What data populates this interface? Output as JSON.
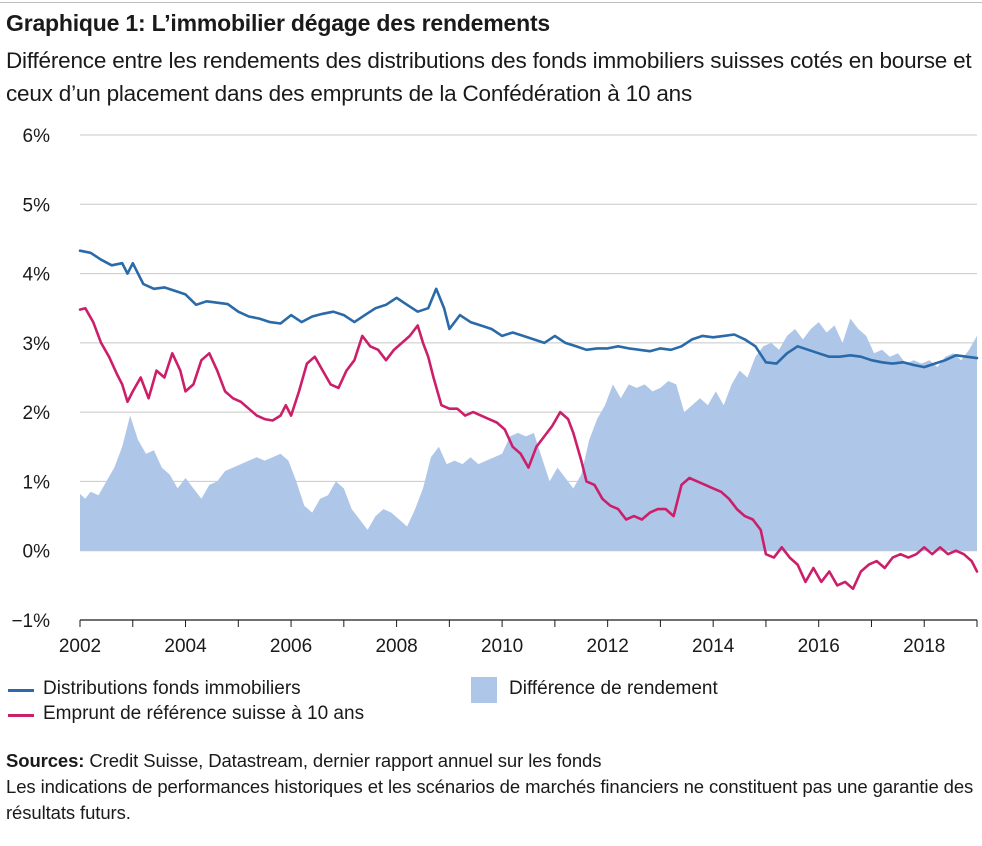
{
  "title": "Graphique 1: L’immobilier dégage des rendements",
  "subtitle": "Différence entre les rendements des distributions des fonds immobiliers suisses cotés en bourse et ceux d’un placement dans des emprunts de la Confédération à 10 ans",
  "sources_label": "Sources:",
  "sources_text": " Credit Suisse, Datastream, dernier rapport annuel sur les fonds",
  "disclaimer": "Les indications de performances historiques et les scénarios de marchés financiers ne constituent pas une garantie des résultats futurs.",
  "colors": {
    "fund": "#2a6aa8",
    "bond": "#cc1f6a",
    "diff": "#aec6e8",
    "grid": "#c8c8c8",
    "axis": "#1a1a1a"
  },
  "chart_data": {
    "type": "line",
    "x_range": [
      2002,
      2019
    ],
    "ylim": [
      -1,
      6
    ],
    "y_ticks": [
      -1,
      0,
      1,
      2,
      3,
      4,
      5,
      6
    ],
    "y_tick_labels": [
      "−1%",
      "0%",
      "1%",
      "2%",
      "3%",
      "4%",
      "5%",
      "6%"
    ],
    "x_ticks": [
      2002,
      2004,
      2006,
      2008,
      2010,
      2012,
      2014,
      2016,
      2018
    ],
    "x_tick_labels": [
      "2002",
      "2004",
      "2006",
      "2008",
      "2010",
      "2012",
      "2014",
      "2016",
      "2018"
    ],
    "grid": "horizontal",
    "legend_position": "bottom",
    "series": [
      {
        "name": "Distributions fonds immobiliers",
        "kind": "line",
        "x": [
          2002.0,
          2002.2,
          2002.4,
          2002.6,
          2002.8,
          2002.9,
          2003.0,
          2003.2,
          2003.4,
          2003.6,
          2003.8,
          2004.0,
          2004.2,
          2004.4,
          2004.6,
          2004.8,
          2005.0,
          2005.2,
          2005.4,
          2005.6,
          2005.8,
          2006.0,
          2006.2,
          2006.4,
          2006.6,
          2006.8,
          2007.0,
          2007.2,
          2007.4,
          2007.6,
          2007.8,
          2008.0,
          2008.2,
          2008.4,
          2008.6,
          2008.75,
          2008.9,
          2009.0,
          2009.2,
          2009.4,
          2009.6,
          2009.8,
          2010.0,
          2010.2,
          2010.4,
          2010.6,
          2010.8,
          2011.0,
          2011.2,
          2011.4,
          2011.6,
          2011.8,
          2012.0,
          2012.2,
          2012.4,
          2012.6,
          2012.8,
          2013.0,
          2013.2,
          2013.4,
          2013.6,
          2013.8,
          2014.0,
          2014.2,
          2014.4,
          2014.6,
          2014.8,
          2015.0,
          2015.2,
          2015.4,
          2015.6,
          2015.8,
          2016.0,
          2016.2,
          2016.4,
          2016.6,
          2016.8,
          2017.0,
          2017.2,
          2017.4,
          2017.6,
          2017.8,
          2018.0,
          2018.2,
          2018.4,
          2018.6,
          2018.8,
          2019.0
        ],
        "y": [
          4.33,
          4.3,
          4.2,
          4.12,
          4.15,
          4.0,
          4.15,
          3.85,
          3.78,
          3.8,
          3.75,
          3.7,
          3.55,
          3.6,
          3.58,
          3.56,
          3.45,
          3.38,
          3.35,
          3.3,
          3.28,
          3.4,
          3.3,
          3.38,
          3.42,
          3.45,
          3.4,
          3.3,
          3.4,
          3.5,
          3.55,
          3.65,
          3.55,
          3.45,
          3.5,
          3.78,
          3.5,
          3.2,
          3.4,
          3.3,
          3.25,
          3.2,
          3.1,
          3.15,
          3.1,
          3.05,
          3.0,
          3.1,
          3.0,
          2.95,
          2.9,
          2.92,
          2.92,
          2.95,
          2.92,
          2.9,
          2.88,
          2.92,
          2.9,
          2.95,
          3.05,
          3.1,
          3.08,
          3.1,
          3.12,
          3.05,
          2.95,
          2.72,
          2.7,
          2.85,
          2.95,
          2.9,
          2.85,
          2.8,
          2.8,
          2.82,
          2.8,
          2.75,
          2.72,
          2.7,
          2.72,
          2.68,
          2.65,
          2.7,
          2.75,
          2.82,
          2.8,
          2.78
        ]
      },
      {
        "name": "Emprunt de référence suisse à 10 ans",
        "kind": "line",
        "x": [
          2002.0,
          2002.1,
          2002.25,
          2002.4,
          2002.55,
          2002.7,
          2002.8,
          2002.9,
          2003.0,
          2003.15,
          2003.3,
          2003.45,
          2003.6,
          2003.75,
          2003.9,
          2004.0,
          2004.15,
          2004.3,
          2004.45,
          2004.6,
          2004.75,
          2004.9,
          2005.05,
          2005.2,
          2005.35,
          2005.5,
          2005.65,
          2005.8,
          2005.9,
          2006.0,
          2006.15,
          2006.3,
          2006.45,
          2006.6,
          2006.75,
          2006.9,
          2007.05,
          2007.2,
          2007.35,
          2007.5,
          2007.65,
          2007.8,
          2007.95,
          2008.1,
          2008.25,
          2008.4,
          2008.5,
          2008.6,
          2008.7,
          2008.85,
          2009.0,
          2009.15,
          2009.3,
          2009.45,
          2009.6,
          2009.75,
          2009.9,
          2010.05,
          2010.2,
          2010.35,
          2010.5,
          2010.65,
          2010.8,
          2010.95,
          2011.1,
          2011.25,
          2011.35,
          2011.5,
          2011.6,
          2011.75,
          2011.9,
          2012.05,
          2012.2,
          2012.35,
          2012.5,
          2012.65,
          2012.8,
          2012.95,
          2013.1,
          2013.25,
          2013.4,
          2013.55,
          2013.7,
          2013.85,
          2014.0,
          2014.15,
          2014.3,
          2014.45,
          2014.6,
          2014.75,
          2014.9,
          2015.0,
          2015.15,
          2015.3,
          2015.45,
          2015.6,
          2015.75,
          2015.9,
          2016.05,
          2016.2,
          2016.35,
          2016.5,
          2016.65,
          2016.8,
          2016.95,
          2017.1,
          2017.25,
          2017.4,
          2017.55,
          2017.7,
          2017.85,
          2018.0,
          2018.15,
          2018.3,
          2018.45,
          2018.6,
          2018.75,
          2018.9,
          2019.0
        ],
        "y": [
          3.48,
          3.5,
          3.3,
          3.0,
          2.8,
          2.55,
          2.4,
          2.15,
          2.3,
          2.5,
          2.2,
          2.6,
          2.5,
          2.85,
          2.6,
          2.3,
          2.4,
          2.75,
          2.85,
          2.6,
          2.3,
          2.2,
          2.15,
          2.05,
          1.95,
          1.9,
          1.88,
          1.95,
          2.1,
          1.95,
          2.3,
          2.7,
          2.8,
          2.6,
          2.4,
          2.35,
          2.6,
          2.75,
          3.1,
          2.95,
          2.9,
          2.75,
          2.9,
          3.0,
          3.1,
          3.25,
          3.0,
          2.8,
          2.5,
          2.1,
          2.05,
          2.05,
          1.95,
          2.0,
          1.95,
          1.9,
          1.85,
          1.75,
          1.5,
          1.4,
          1.2,
          1.5,
          1.65,
          1.8,
          2.0,
          1.9,
          1.7,
          1.3,
          1.0,
          0.95,
          0.75,
          0.65,
          0.6,
          0.45,
          0.5,
          0.45,
          0.55,
          0.6,
          0.6,
          0.5,
          0.95,
          1.05,
          1.0,
          0.95,
          0.9,
          0.85,
          0.75,
          0.6,
          0.5,
          0.45,
          0.3,
          -0.05,
          -0.1,
          0.05,
          -0.1,
          -0.2,
          -0.45,
          -0.25,
          -0.45,
          -0.3,
          -0.5,
          -0.45,
          -0.55,
          -0.3,
          -0.2,
          -0.15,
          -0.25,
          -0.1,
          -0.05,
          -0.1,
          -0.05,
          0.05,
          -0.05,
          0.05,
          -0.05,
          0.0,
          -0.05,
          -0.15,
          -0.3
        ]
      },
      {
        "name": "Différence de rendement",
        "kind": "area",
        "x": [
          2002.0,
          2002.1,
          2002.2,
          2002.35,
          2002.5,
          2002.65,
          2002.8,
          2002.95,
          2003.1,
          2003.25,
          2003.4,
          2003.55,
          2003.7,
          2003.85,
          2004.0,
          2004.15,
          2004.3,
          2004.45,
          2004.6,
          2004.75,
          2004.9,
          2005.05,
          2005.2,
          2005.35,
          2005.5,
          2005.65,
          2005.8,
          2005.95,
          2006.1,
          2006.25,
          2006.4,
          2006.55,
          2006.7,
          2006.85,
          2007.0,
          2007.15,
          2007.3,
          2007.45,
          2007.6,
          2007.75,
          2007.9,
          2008.05,
          2008.2,
          2008.35,
          2008.5,
          2008.65,
          2008.8,
          2008.95,
          2009.1,
          2009.25,
          2009.4,
          2009.55,
          2009.7,
          2009.85,
          2010.0,
          2010.15,
          2010.3,
          2010.45,
          2010.6,
          2010.75,
          2010.9,
          2011.05,
          2011.2,
          2011.35,
          2011.5,
          2011.65,
          2011.8,
          2011.95,
          2012.1,
          2012.25,
          2012.4,
          2012.55,
          2012.7,
          2012.85,
          2013.0,
          2013.15,
          2013.3,
          2013.45,
          2013.6,
          2013.75,
          2013.9,
          2014.05,
          2014.2,
          2014.35,
          2014.5,
          2014.65,
          2014.8,
          2014.95,
          2015.1,
          2015.25,
          2015.4,
          2015.55,
          2015.7,
          2015.85,
          2016.0,
          2016.15,
          2016.3,
          2016.45,
          2016.6,
          2016.75,
          2016.9,
          2017.05,
          2017.2,
          2017.35,
          2017.5,
          2017.65,
          2017.8,
          2017.95,
          2018.1,
          2018.25,
          2018.4,
          2018.55,
          2018.7,
          2018.85,
          2019.0
        ],
        "y": [
          0.82,
          0.75,
          0.85,
          0.8,
          1.0,
          1.2,
          1.5,
          1.95,
          1.6,
          1.4,
          1.45,
          1.2,
          1.1,
          0.9,
          1.05,
          0.9,
          0.75,
          0.95,
          1.0,
          1.15,
          1.2,
          1.25,
          1.3,
          1.35,
          1.3,
          1.35,
          1.4,
          1.3,
          1.0,
          0.65,
          0.55,
          0.75,
          0.8,
          1.0,
          0.9,
          0.6,
          0.45,
          0.3,
          0.5,
          0.6,
          0.55,
          0.45,
          0.35,
          0.6,
          0.9,
          1.35,
          1.5,
          1.25,
          1.3,
          1.25,
          1.35,
          1.25,
          1.3,
          1.35,
          1.4,
          1.65,
          1.7,
          1.65,
          1.7,
          1.35,
          1.0,
          1.2,
          1.05,
          0.9,
          1.1,
          1.6,
          1.9,
          2.1,
          2.4,
          2.2,
          2.4,
          2.35,
          2.4,
          2.3,
          2.35,
          2.45,
          2.4,
          2.0,
          2.1,
          2.2,
          2.1,
          2.3,
          2.1,
          2.4,
          2.6,
          2.5,
          2.8,
          2.95,
          3.0,
          2.9,
          3.1,
          3.2,
          3.05,
          3.2,
          3.3,
          3.15,
          3.25,
          3.0,
          3.35,
          3.2,
          3.1,
          2.85,
          2.9,
          2.8,
          2.85,
          2.7,
          2.75,
          2.7,
          2.75,
          2.65,
          2.8,
          2.85,
          2.75,
          2.9,
          3.1
        ]
      }
    ]
  }
}
